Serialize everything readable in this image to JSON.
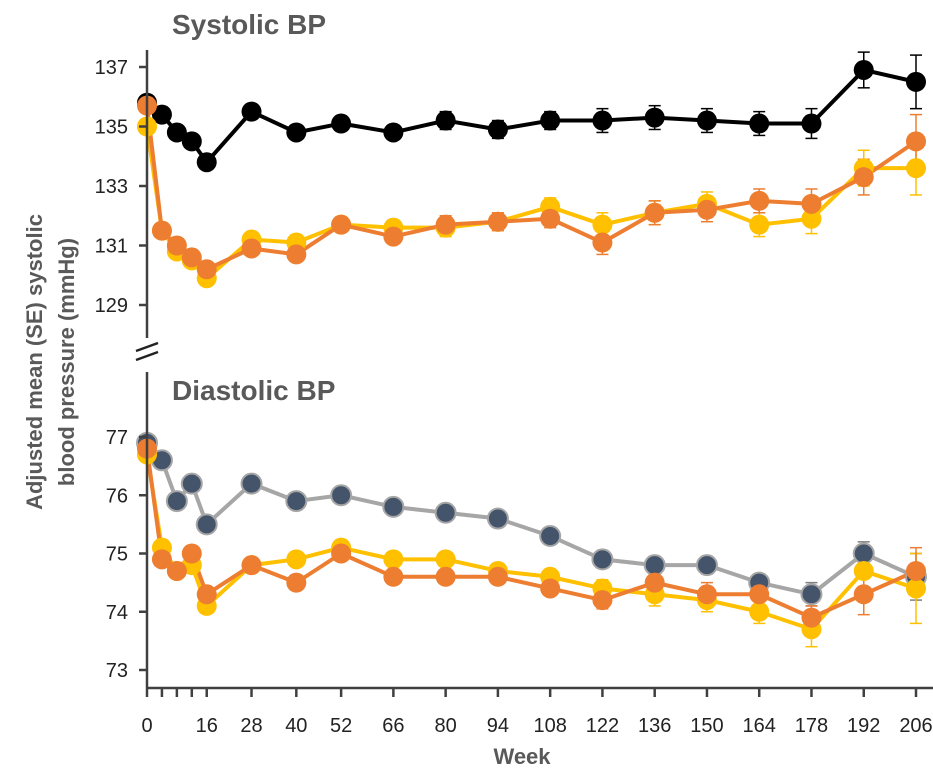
{
  "chart_data": {
    "type": "line",
    "xlabel": "Week",
    "ylabel_line1": "Adjusted mean (SE) systolic",
    "ylabel_line2": "blood pressure (mmHg)",
    "x_ticks": [
      "0",
      "16",
      "28",
      "40",
      "52",
      "66",
      "80",
      "94",
      "108",
      "122",
      "136",
      "150",
      "164",
      "178",
      "192",
      "206"
    ],
    "x": [
      0,
      4,
      8,
      12,
      16,
      28,
      40,
      52,
      66,
      80,
      94,
      108,
      122,
      136,
      150,
      164,
      178,
      192,
      206
    ],
    "panels": [
      {
        "title": "Systolic BP",
        "yticks": [
          129,
          131,
          133,
          135,
          137
        ],
        "ylim": [
          128,
          138.5
        ],
        "series": [
          {
            "color": "#000000",
            "line": "#000000",
            "marker": "#000000",
            "values": [
              135.8,
              135.4,
              134.8,
              134.5,
              133.8,
              135.5,
              134.8,
              135.1,
              134.8,
              135.2,
              134.9,
              135.2,
              135.2,
              135.3,
              135.2,
              135.1,
              135.1,
              136.9,
              136.5
            ],
            "errors": [
              0.2,
              0.2,
              0.2,
              0.2,
              0.2,
              0.2,
              0.2,
              0.2,
              0.2,
              0.3,
              0.3,
              0.3,
              0.4,
              0.4,
              0.4,
              0.4,
              0.5,
              0.6,
              0.9
            ]
          },
          {
            "color": "#FFC000",
            "line": "#FFC000",
            "marker": "#FFC000",
            "values": [
              135.0,
              131.5,
              130.8,
              130.5,
              129.9,
              131.2,
              131.1,
              131.7,
              131.6,
              131.6,
              131.8,
              132.3,
              131.7,
              132.1,
              132.4,
              131.7,
              131.9,
              133.6,
              133.6
            ],
            "errors": [
              0.2,
              0.2,
              0.2,
              0.2,
              0.2,
              0.2,
              0.2,
              0.2,
              0.2,
              0.3,
              0.3,
              0.3,
              0.4,
              0.4,
              0.4,
              0.4,
              0.5,
              0.6,
              0.9
            ]
          },
          {
            "color": "#ED7D31",
            "line": "#ED7D31",
            "marker": "#ED7D31",
            "values": [
              135.7,
              131.5,
              131.0,
              130.6,
              130.2,
              130.9,
              130.7,
              131.7,
              131.3,
              131.7,
              131.8,
              131.9,
              131.1,
              132.1,
              132.2,
              132.5,
              132.4,
              133.3,
              134.5
            ],
            "errors": [
              0.2,
              0.2,
              0.2,
              0.2,
              0.2,
              0.2,
              0.2,
              0.2,
              0.2,
              0.3,
              0.3,
              0.3,
              0.4,
              0.4,
              0.4,
              0.4,
              0.5,
              0.6,
              0.9
            ]
          }
        ]
      },
      {
        "title": "Diastolic BP",
        "yticks": [
          73,
          74,
          75,
          76,
          77
        ],
        "ylim": [
          72.7,
          77.4
        ],
        "series": [
          {
            "color": "#7F7F7F",
            "line": "#A6A6A6",
            "marker": "#44546A",
            "values": [
              76.9,
              76.6,
              75.9,
              76.2,
              75.5,
              76.2,
              75.9,
              76.0,
              75.8,
              75.7,
              75.6,
              75.3,
              74.9,
              74.8,
              74.8,
              74.5,
              74.3,
              75.0,
              74.6
            ],
            "errors": [
              0.1,
              0.1,
              0.1,
              0.1,
              0.1,
              0.1,
              0.1,
              0.1,
              0.1,
              0.1,
              0.1,
              0.1,
              0.15,
              0.15,
              0.15,
              0.15,
              0.2,
              0.2,
              0.4
            ]
          },
          {
            "color": "#FFC000",
            "line": "#FFC000",
            "marker": "#FFC000",
            "values": [
              76.7,
              75.1,
              74.7,
              74.8,
              74.1,
              74.8,
              74.9,
              75.1,
              74.9,
              74.9,
              74.7,
              74.6,
              74.4,
              74.3,
              74.2,
              74.0,
              73.7,
              74.7,
              74.4
            ],
            "errors": [
              0.1,
              0.1,
              0.1,
              0.1,
              0.1,
              0.1,
              0.1,
              0.1,
              0.1,
              0.1,
              0.1,
              0.1,
              0.15,
              0.2,
              0.2,
              0.2,
              0.3,
              0.3,
              0.6
            ]
          },
          {
            "color": "#ED7D31",
            "line": "#ED7D31",
            "marker": "#ED7D31",
            "values": [
              76.8,
              74.9,
              74.7,
              75.0,
              74.3,
              74.8,
              74.5,
              75.0,
              74.6,
              74.6,
              74.6,
              74.4,
              74.2,
              74.5,
              74.3,
              74.3,
              73.9,
              74.3,
              74.7
            ],
            "errors": [
              0.1,
              0.1,
              0.1,
              0.1,
              0.1,
              0.1,
              0.1,
              0.1,
              0.1,
              0.1,
              0.1,
              0.1,
              0.15,
              0.15,
              0.2,
              0.2,
              0.2,
              0.35,
              0.4
            ]
          }
        ]
      }
    ],
    "grid": false,
    "legend": "none"
  }
}
